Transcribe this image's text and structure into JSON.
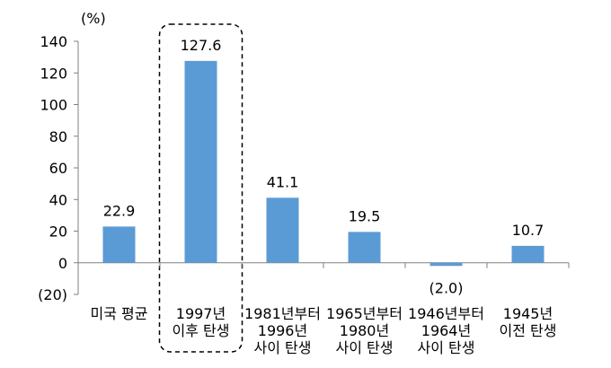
{
  "chart_data": {
    "type": "bar",
    "unit_label": "(%)",
    "categories": [
      [
        "미국 평균"
      ],
      [
        "1997년",
        "이후 탄생"
      ],
      [
        "1981년부터",
        "1996년",
        "사이 탄생"
      ],
      [
        "1965년부터",
        "1980년",
        "사이 탄생"
      ],
      [
        "1946년부터",
        "1964년",
        "사이 탄생"
      ],
      [
        "1945년",
        "이전 탄생"
      ]
    ],
    "values": [
      22.9,
      127.6,
      41.1,
      19.5,
      -2.0,
      10.7
    ],
    "value_labels": [
      "22.9",
      "127.6",
      "41.1",
      "19.5",
      "(2.0)",
      "10.7"
    ],
    "yticks": [
      -20,
      0,
      20,
      40,
      60,
      80,
      100,
      120,
      140
    ],
    "ytick_labels": [
      "(20)",
      "0",
      "20",
      "40",
      "60",
      "80",
      "100",
      "120",
      "140"
    ],
    "ylim": [
      -20,
      140
    ],
    "highlighted_category_index": 1,
    "grid": false,
    "bar_color": "#5b9bd5",
    "axis_color": "#808080",
    "highlight_box_color": "#000000"
  }
}
